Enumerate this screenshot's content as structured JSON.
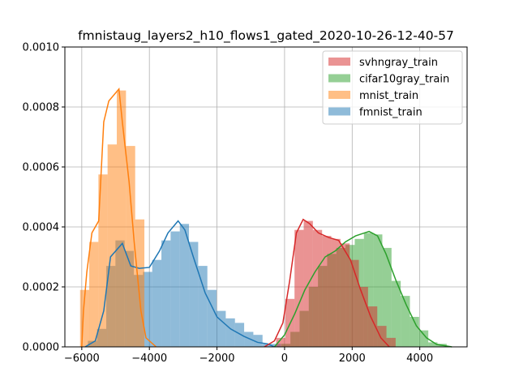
{
  "chart_data": {
    "type": "histogram",
    "title": "fmnistaug_layers2_h10_flows1_gated_2020-10-26-12-40-57",
    "xlabel": "",
    "ylabel": "",
    "xlim": [
      -6500,
      5400
    ],
    "ylim": [
      0,
      0.001
    ],
    "xticks": [
      -6000,
      -4000,
      -2000,
      0,
      2000,
      4000
    ],
    "xtick_labels": [
      "−6000",
      "−4000",
      "−2000",
      "0",
      "2000",
      "4000"
    ],
    "yticks": [
      0,
      0.0002,
      0.0004,
      0.0006,
      0.0008,
      0.001
    ],
    "ytick_labels": [
      "0.0000",
      "0.0002",
      "0.0004",
      "0.0006",
      "0.0008",
      "0.0010"
    ],
    "grid": true,
    "legend_position": "top-right",
    "series": [
      {
        "name": "fmnist_train",
        "color": "#1f77b4",
        "bin_width": 272,
        "bins": [
          [
            -5820,
            2e-05
          ],
          [
            -5548,
            6e-05
          ],
          [
            -5276,
            0.00027
          ],
          [
            -5004,
            0.000355
          ],
          [
            -4732,
            0.00032
          ],
          [
            -4460,
            0.00024
          ],
          [
            -4188,
            0.00025
          ],
          [
            -3916,
            0.00029
          ],
          [
            -3644,
            0.000355
          ],
          [
            -3372,
            0.000385
          ],
          [
            -3100,
            0.00041
          ],
          [
            -2828,
            0.00035
          ],
          [
            -2556,
            0.00027
          ],
          [
            -2284,
            0.00019
          ],
          [
            -2012,
            0.00012
          ],
          [
            -1740,
            9.5e-05
          ],
          [
            -1468,
            8e-05
          ],
          [
            -1196,
            5e-05
          ],
          [
            -924,
            4e-05
          ],
          [
            -652,
            1e-05
          ],
          [
            -380,
            1e-05
          ]
        ],
        "kde": [
          [
            -5900,
            0.0
          ],
          [
            -5600,
            2e-05
          ],
          [
            -5350,
            0.00012
          ],
          [
            -5150,
            0.0003
          ],
          [
            -4800,
            0.000345
          ],
          [
            -4550,
            0.00027
          ],
          [
            -4300,
            0.000262
          ],
          [
            -4000,
            0.000265
          ],
          [
            -3700,
            0.00032
          ],
          [
            -3450,
            0.00038
          ],
          [
            -3150,
            0.00042
          ],
          [
            -2950,
            0.00039
          ],
          [
            -2700,
            0.0003
          ],
          [
            -2350,
            0.00018
          ],
          [
            -2000,
            0.0001
          ],
          [
            -1600,
            6e-05
          ],
          [
            -1200,
            3.5e-05
          ],
          [
            -800,
            1.5e-05
          ],
          [
            -500,
            1e-05
          ],
          [
            -300,
            0.0
          ]
        ]
      },
      {
        "name": "mnist_train",
        "color": "#ff7f0e",
        "bin_width": 272,
        "bins": [
          [
            -6050,
            0.00019
          ],
          [
            -5780,
            0.00035
          ],
          [
            -5508,
            0.000575
          ],
          [
            -5236,
            0.000675
          ],
          [
            -4964,
            0.000855
          ],
          [
            -4692,
            0.00067
          ],
          [
            -4420,
            0.000425
          ],
          [
            -4148,
            0.0
          ],
          [
            -3876,
            0.0
          ]
        ],
        "kde": [
          [
            -6000,
            0.0
          ],
          [
            -5950,
            0.00012
          ],
          [
            -5850,
            0.00025
          ],
          [
            -5700,
            0.00038
          ],
          [
            -5500,
            0.00042
          ],
          [
            -5350,
            0.00075
          ],
          [
            -5200,
            0.00082
          ],
          [
            -4900,
            0.00086
          ],
          [
            -4800,
            0.00075
          ],
          [
            -4600,
            0.00055
          ],
          [
            -4450,
            0.00035
          ],
          [
            -4250,
            0.00012
          ],
          [
            -4100,
            3e-05
          ],
          [
            -3800,
            0.0
          ]
        ]
      },
      {
        "name": "cifar10gray_train",
        "color": "#2ca02c",
        "bin_width": 272,
        "bins": [
          [
            -100,
            1e-05
          ],
          [
            172,
            5e-05
          ],
          [
            444,
            0.00012
          ],
          [
            716,
            0.0002
          ],
          [
            988,
            0.00027
          ],
          [
            1260,
            0.00031
          ],
          [
            1532,
            0.00033
          ],
          [
            1804,
            0.00034
          ],
          [
            2076,
            0.00036
          ],
          [
            2348,
            0.00038
          ],
          [
            2620,
            0.000375
          ],
          [
            2892,
            0.00033
          ],
          [
            3164,
            0.00022
          ],
          [
            3436,
            0.00017
          ],
          [
            3708,
            0.0001
          ],
          [
            3980,
            5.5e-05
          ],
          [
            4252,
            1.5e-05
          ],
          [
            4524,
            1e-05
          ]
        ],
        "kde": [
          [
            -300,
            0.0
          ],
          [
            0,
            4e-05
          ],
          [
            300,
            0.00011
          ],
          [
            600,
            0.00019
          ],
          [
            900,
            0.00025
          ],
          [
            1200,
            0.0003
          ],
          [
            1500,
            0.00032
          ],
          [
            1800,
            0.00035
          ],
          [
            2100,
            0.00037
          ],
          [
            2500,
            0.000385
          ],
          [
            2750,
            0.00037
          ],
          [
            3000,
            0.00031
          ],
          [
            3300,
            0.00022
          ],
          [
            3600,
            0.00014
          ],
          [
            3900,
            7e-05
          ],
          [
            4200,
            3e-05
          ],
          [
            4500,
            8e-06
          ],
          [
            4950,
            0.0
          ]
        ]
      },
      {
        "name": "svhngray_train",
        "color": "#d62728",
        "bin_width": 272,
        "bins": [
          [
            -250,
            3e-05
          ],
          [
            22,
            0.00016
          ],
          [
            294,
            0.00039
          ],
          [
            566,
            0.00042
          ],
          [
            838,
            0.00039
          ],
          [
            1110,
            0.00037
          ],
          [
            1382,
            0.00036
          ],
          [
            1654,
            0.000345
          ],
          [
            1926,
            0.00029
          ],
          [
            2198,
            0.0002
          ],
          [
            2470,
            0.000135
          ],
          [
            2742,
            7e-05
          ],
          [
            3014,
            3e-05
          ]
        ],
        "kde": [
          [
            -600,
            0.0
          ],
          [
            -300,
            2e-05
          ],
          [
            -50,
            8e-05
          ],
          [
            150,
            0.00022
          ],
          [
            350,
            0.00038
          ],
          [
            550,
            0.000425
          ],
          [
            750,
            0.00041
          ],
          [
            1000,
            0.00038
          ],
          [
            1300,
            0.000365
          ],
          [
            1600,
            0.000355
          ],
          [
            1950,
            0.00029
          ],
          [
            2250,
            0.00019
          ],
          [
            2550,
            0.0001
          ],
          [
            2850,
            3e-05
          ],
          [
            3100,
            0.0
          ]
        ]
      }
    ],
    "legend_order": [
      "svhngray_train",
      "cifar10gray_train",
      "mnist_train",
      "fmnist_train"
    ]
  }
}
